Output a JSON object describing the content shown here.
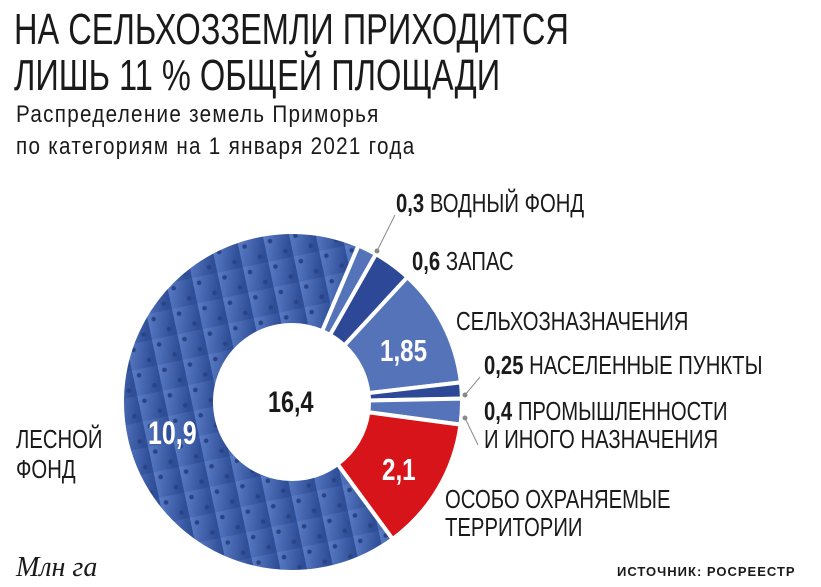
{
  "title_lines": [
    "НА СЕЛЬХОЗЗЕМЛИ ПРИХОДИТСЯ",
    "ЛИШЬ 11 % ОБЩЕЙ ПЛОЩАДИ"
  ],
  "subtitle_lines": [
    "Распределение земель Приморья",
    "по категориям на 1 января 2021 года"
  ],
  "unit": "Млн га",
  "source": "ИСТОЧНИК: РОСРЕЕСТР",
  "chart_data": {
    "type": "pie",
    "donut": true,
    "total": "16,4",
    "slices": [
      {
        "name": "ВОДНЫЙ ФОНД",
        "value": 0.3,
        "label": "0,3",
        "color": "#5473b8"
      },
      {
        "name": "ЗАПАС",
        "value": 0.6,
        "label": "0,6",
        "color": "#2c4896"
      },
      {
        "name": "СЕЛЬХОЗНАЗНАЧЕНИЯ",
        "value": 1.85,
        "label": "1,85",
        "color": "#5473b8"
      },
      {
        "name": "НАСЕЛЕННЫЕ ПУНКТЫ",
        "value": 0.25,
        "label": "0,25",
        "color": "#2c4896"
      },
      {
        "name": "ПРОМЫШЛЕННОСТИ И ИНОГО НАЗНАЧЕНИЯ",
        "name_lines": [
          "ПРОМЫШЛЕННОСТИ",
          "И ИНОГО НАЗНАЧЕНИЯ"
        ],
        "value": 0.4,
        "label": "0,4",
        "color": "#5473b8"
      },
      {
        "name": "ОСОБО ОХРАНЯЕМЫЕ ТЕРРИТОРИИ",
        "name_lines": [
          "ОСОБО ОХРАНЯЕМЫЕ",
          "ТЕРРИТОРИИ"
        ],
        "value": 2.1,
        "label": "2,1",
        "color": "#d7141a"
      },
      {
        "name": "ЛЕСНОЙ ФОНД",
        "name_lines": [
          "ЛЕСНОЙ",
          "ФОНД"
        ],
        "value": 10.9,
        "label": "10,9",
        "color": "#4a68b3",
        "pattern": "dots"
      }
    ]
  }
}
